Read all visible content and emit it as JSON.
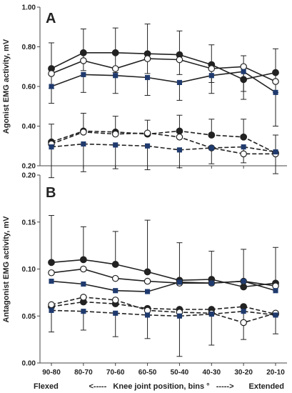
{
  "chart_data": [
    {
      "panel_label": "A",
      "type": "line",
      "ylabel": "Agonist EMG activity, mV",
      "ylim": [
        0.2,
        1.0
      ],
      "yticks": [
        "0.20",
        "0.40",
        "0.60",
        "0.80",
        "1.00"
      ],
      "categories": [
        "90-80",
        "80-70",
        "70-60",
        "60-50",
        "50-40",
        "40-30",
        "30-20",
        "20-10"
      ],
      "grid": false,
      "series": [
        {
          "line": "solid",
          "marker": "filled-circle",
          "values": [
            0.69,
            0.77,
            0.77,
            0.765,
            0.76,
            0.71,
            0.635,
            0.67
          ],
          "err_up": [
            0.13,
            0.12,
            0.125,
            0.15,
            0.12,
            0.1,
            0.12,
            0.12
          ],
          "err_down": [
            0.1,
            0.09,
            0.1,
            0.1,
            0.1,
            0.09,
            0.1,
            0.1
          ]
        },
        {
          "line": "solid",
          "marker": "open-circle",
          "values": [
            0.665,
            0.73,
            0.69,
            0.74,
            0.735,
            0.69,
            0.7,
            0.625
          ],
          "err_up": [
            0.0,
            0.0,
            0.0,
            0.0,
            0.0,
            0.0,
            0.0,
            0.0
          ],
          "err_down": [
            0.0,
            0.0,
            0.0,
            0.0,
            0.0,
            0.0,
            0.0,
            0.0
          ]
        },
        {
          "line": "solid",
          "marker": "filled-square",
          "values": [
            0.6,
            0.66,
            0.655,
            0.645,
            0.62,
            0.655,
            0.675,
            0.57
          ],
          "err_up": [
            0.0,
            0.0,
            0.0,
            0.0,
            0.0,
            0.0,
            0.0,
            0.0
          ],
          "err_down": [
            0.085,
            0.09,
            0.09,
            0.09,
            0.09,
            0.09,
            0.1,
            0.17
          ]
        },
        {
          "line": "dashed",
          "marker": "filled-circle",
          "values": [
            0.32,
            0.375,
            0.37,
            0.36,
            0.375,
            0.355,
            0.345,
            0.265
          ],
          "err_up": [
            0.09,
            0.09,
            0.08,
            0.07,
            0.08,
            0.08,
            0.09,
            0.09
          ],
          "err_down": [
            0.0,
            0.0,
            0.0,
            0.0,
            0.0,
            0.0,
            0.0,
            0.0
          ]
        },
        {
          "line": "dashed",
          "marker": "open-circle",
          "values": [
            0.31,
            0.37,
            0.36,
            0.365,
            0.345,
            0.29,
            0.26,
            0.26
          ],
          "err_up": [
            0.0,
            0.0,
            0.0,
            0.0,
            0.0,
            0.0,
            0.0,
            0.0
          ],
          "err_down": [
            0.0,
            0.0,
            0.0,
            0.0,
            0.0,
            0.0,
            0.0,
            0.0
          ]
        },
        {
          "line": "dashed",
          "marker": "filled-square",
          "values": [
            0.295,
            0.31,
            0.305,
            0.3,
            0.28,
            0.29,
            0.295,
            0.27
          ],
          "err_up": [
            0.0,
            0.0,
            0.0,
            0.0,
            0.0,
            0.0,
            0.0,
            0.0
          ],
          "err_down": [
            0.155,
            0.14,
            0.12,
            0.12,
            0.09,
            0.08,
            0.08,
            0.11
          ]
        }
      ]
    },
    {
      "panel_label": "B",
      "type": "line",
      "ylabel": "Antagonist EMG activity, mV",
      "ylim": [
        0.0,
        0.2
      ],
      "yticks": [
        "0.00",
        "0.05",
        "0.10",
        "0.15",
        "0.20"
      ],
      "categories": [
        "90-80",
        "80-70",
        "70-60",
        "60-50",
        "50-40",
        "40-30",
        "30-20",
        "20-10"
      ],
      "grid": false,
      "series": [
        {
          "line": "solid",
          "marker": "filled-circle",
          "values": [
            0.107,
            0.11,
            0.105,
            0.097,
            0.088,
            0.089,
            0.081,
            0.085
          ],
          "err_up": [
            0.05,
            0.035,
            0.035,
            0.055,
            0.04,
            0.03,
            0.04,
            0.038
          ],
          "err_down": [
            0.0,
            0.0,
            0.0,
            0.0,
            0.0,
            0.0,
            0.0,
            0.0
          ]
        },
        {
          "line": "solid",
          "marker": "open-circle",
          "values": [
            0.096,
            0.1,
            0.09,
            0.087,
            0.085,
            0.085,
            0.087,
            0.082
          ],
          "err_up": [
            0.0,
            0.0,
            0.0,
            0.0,
            0.0,
            0.0,
            0.0,
            0.0
          ],
          "err_down": [
            0.0,
            0.0,
            0.0,
            0.0,
            0.0,
            0.0,
            0.0,
            0.0
          ]
        },
        {
          "line": "solid",
          "marker": "filled-square",
          "values": [
            0.087,
            0.084,
            0.077,
            0.076,
            0.086,
            0.085,
            0.087,
            0.077
          ],
          "err_up": [
            0.0,
            0.0,
            0.0,
            0.0,
            0.0,
            0.0,
            0.0,
            0.0
          ],
          "err_down": [
            0.0,
            0.0,
            0.0,
            0.0,
            0.0,
            0.0,
            0.0,
            0.0
          ]
        },
        {
          "line": "dashed",
          "marker": "filled-circle",
          "values": [
            0.06,
            0.065,
            0.063,
            0.058,
            0.057,
            0.057,
            0.06,
            0.052
          ],
          "err_up": [
            0.0,
            0.0,
            0.0,
            0.0,
            0.0,
            0.0,
            0.0,
            0.0
          ],
          "err_down": [
            0.0,
            0.0,
            0.0,
            0.0,
            0.0,
            0.0,
            0.0,
            0.0
          ]
        },
        {
          "line": "dashed",
          "marker": "open-circle",
          "values": [
            0.062,
            0.07,
            0.067,
            0.056,
            0.054,
            0.053,
            0.043,
            0.053
          ],
          "err_up": [
            0.0,
            0.0,
            0.0,
            0.0,
            0.0,
            0.0,
            0.0,
            0.0
          ],
          "err_down": [
            0.0,
            0.0,
            0.0,
            0.0,
            0.0,
            0.0,
            0.0,
            0.0
          ]
        },
        {
          "line": "dashed",
          "marker": "filled-square",
          "values": [
            0.056,
            0.055,
            0.053,
            0.051,
            0.05,
            0.052,
            0.055,
            0.051
          ],
          "err_up": [
            0.0,
            0.0,
            0.0,
            0.0,
            0.0,
            0.0,
            0.0,
            0.0
          ],
          "err_down": [
            0.023,
            0.02,
            0.025,
            0.025,
            0.043,
            0.033,
            0.03,
            0.02
          ]
        }
      ]
    }
  ],
  "footer": {
    "left": "Flexed",
    "center": "<-----   Knee joint position, bins °   ----->",
    "right": "Extended"
  },
  "colors": {
    "line": "#222222",
    "square": "#1f3a6e"
  }
}
